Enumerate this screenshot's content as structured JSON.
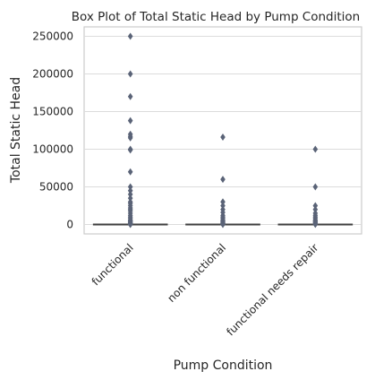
{
  "chart_data": {
    "type": "box",
    "title": "Box Plot of Total Static Head by Pump Condition",
    "xlabel": "Pump Condition",
    "ylabel": "Total Static Head",
    "categories": [
      "functional",
      "non functional",
      "functional needs repair"
    ],
    "yticks": [
      0,
      50000,
      100000,
      150000,
      200000,
      250000
    ],
    "ylim": [
      -12500,
      262500
    ],
    "grid": true,
    "box_color": "#5a86ba",
    "outlier_color": "#5a6377",
    "boxes": [
      {
        "category": "functional",
        "min": 0,
        "q1": 0,
        "median": 0,
        "q3": 20,
        "max": 50,
        "outliers": [
          250000,
          200000,
          170000,
          138000,
          120000,
          117000,
          115000,
          100000,
          99000,
          70000,
          50000,
          45000,
          40000,
          35000,
          30000,
          28000,
          25000,
          22000,
          20000,
          18000,
          15000,
          12000,
          10000,
          8000,
          6000,
          5000,
          4000,
          3000,
          2000,
          1500,
          1000,
          800,
          500,
          300,
          200,
          100
        ]
      },
      {
        "category": "non functional",
        "min": 0,
        "q1": 0,
        "median": 0,
        "q3": 0,
        "max": 0,
        "outliers": [
          116000,
          60000,
          30000,
          25000,
          20000,
          16000,
          12000,
          10000,
          8000,
          6000,
          5000,
          4000,
          3000,
          2000,
          1500,
          1000,
          500,
          300,
          100
        ]
      },
      {
        "category": "functional needs repair",
        "min": 0,
        "q1": 0,
        "median": 0,
        "q3": 0,
        "max": 0,
        "outliers": [
          100000,
          50000,
          25000,
          20000,
          15000,
          12000,
          10000,
          8000,
          6000,
          5000,
          4000,
          3000,
          2000,
          1000,
          500,
          200
        ]
      }
    ]
  }
}
